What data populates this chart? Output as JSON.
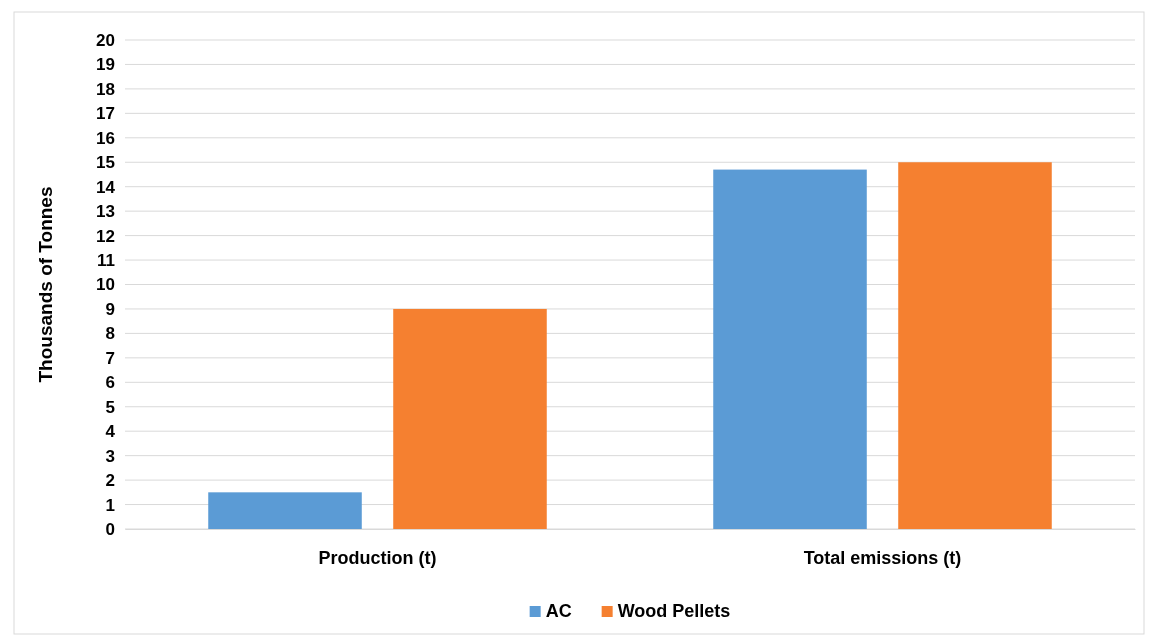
{
  "chart_data": {
    "type": "bar",
    "ylabel": "Thousands of Tonnes",
    "categories": [
      "Production (t)",
      "Total emissions (t)"
    ],
    "series": [
      {
        "name": "AC",
        "color": "#5b9bd5",
        "values": [
          1.5,
          14.7
        ]
      },
      {
        "name": "Wood Pellets",
        "color": "#f58030",
        "values": [
          9,
          15
        ]
      }
    ],
    "ylim": [
      0,
      20
    ],
    "yticks": [
      0,
      1,
      2,
      3,
      4,
      5,
      6,
      7,
      8,
      9,
      10,
      11,
      12,
      13,
      14,
      15,
      16,
      17,
      18,
      19,
      20
    ],
    "grid": "y",
    "legend": "bottom"
  }
}
